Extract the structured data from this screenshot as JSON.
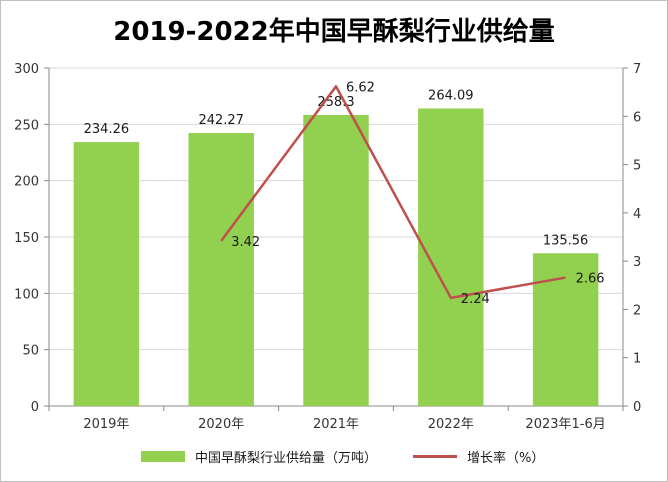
{
  "chart_data": {
    "type": "bar",
    "title": "2019-2022年中国早酥梨行业供给量",
    "categories": [
      "2019年",
      "2020年",
      "2021年",
      "2022年",
      "2023年1-6月"
    ],
    "series": [
      {
        "name": "中国早酥梨行业供给量（万吨）",
        "type": "bar",
        "axis": "left",
        "color": "#92d050",
        "values": [
          234.26,
          242.27,
          258.3,
          264.09,
          135.56
        ],
        "labels": [
          "234.26",
          "242.27",
          "258.3",
          "264.09",
          "135.56"
        ]
      },
      {
        "name": "增长率（%）",
        "type": "line",
        "axis": "right",
        "color": "#c0504d",
        "values": [
          null,
          3.42,
          6.62,
          2.24,
          2.66
        ],
        "labels": [
          "",
          "3.42",
          "6.62",
          "2.24",
          "2.66"
        ]
      }
    ],
    "y_left": {
      "min": 0,
      "max": 300,
      "ticks": [
        "0",
        "50",
        "100",
        "150",
        "200",
        "250",
        "300"
      ]
    },
    "y_right": {
      "min": 0,
      "max": 7,
      "ticks": [
        "0",
        "1",
        "2",
        "3",
        "4",
        "5",
        "6",
        "7"
      ]
    },
    "grid": true,
    "legend_position": "bottom"
  }
}
